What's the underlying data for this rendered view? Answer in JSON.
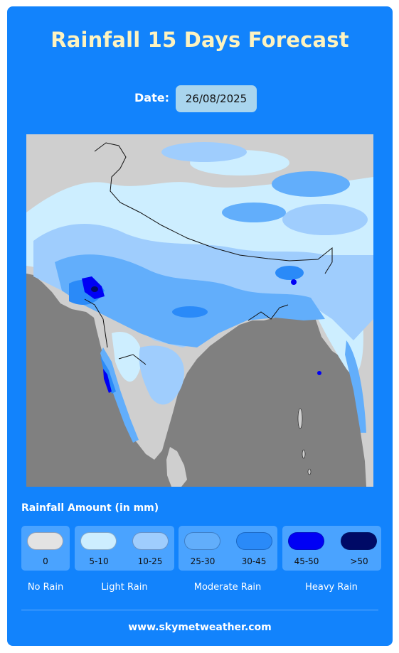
{
  "page": {
    "title": "Rainfall 15 Days Forecast",
    "date_label": "Date:",
    "date_value": "26/08/2025"
  },
  "map": {
    "region": "South Asia / India",
    "background_color": "#808080",
    "land_color": "#cfcfcf"
  },
  "legend": {
    "heading": "Rainfall Amount (in mm)",
    "groups": [
      {
        "name": "No Rain",
        "items": [
          {
            "label": "0",
            "color": "#e3e3e3"
          }
        ]
      },
      {
        "name": "Light Rain",
        "items": [
          {
            "label": "5-10",
            "color": "#cdeeff"
          },
          {
            "label": "10-25",
            "color": "#9fcdfd"
          }
        ]
      },
      {
        "name": "Moderate Rain",
        "items": [
          {
            "label": "25-30",
            "color": "#62aefb"
          },
          {
            "label": "30-45",
            "color": "#2a8af8"
          }
        ]
      },
      {
        "name": "Heavy Rain",
        "items": [
          {
            "label": "45-50",
            "color": "#0000f5"
          },
          {
            "label": ">50",
            "color": "#000a66"
          }
        ]
      }
    ]
  },
  "footer": {
    "website": "www.skymetweather.com"
  }
}
